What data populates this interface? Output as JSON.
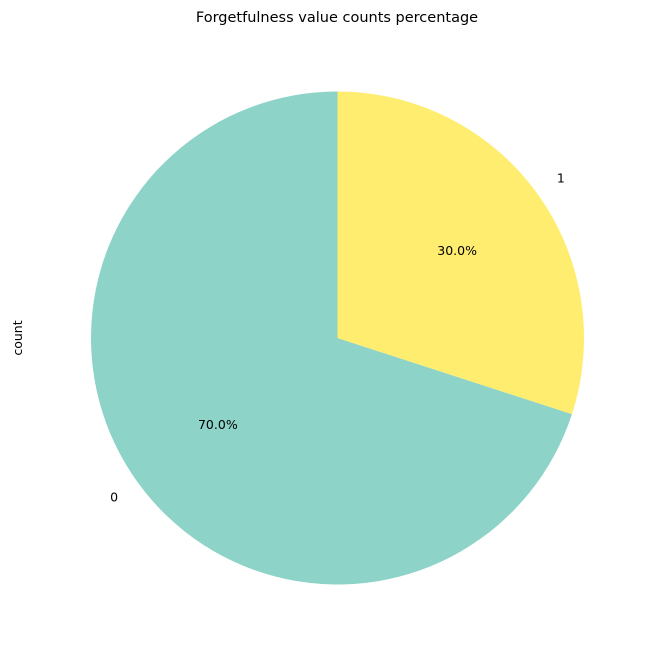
{
  "chart_data": {
    "type": "pie",
    "title": "Forgetfulness value counts percentage",
    "ylabel": "count",
    "labels": [
      "0",
      "1"
    ],
    "values": [
      70.0,
      30.0
    ],
    "pct_labels": [
      "70.0%",
      "30.0%"
    ],
    "colors": [
      "#8dd3c7",
      "#ffed6f"
    ],
    "start_angle_deg": 90,
    "direction": "counterclockwise",
    "legend": "none"
  }
}
